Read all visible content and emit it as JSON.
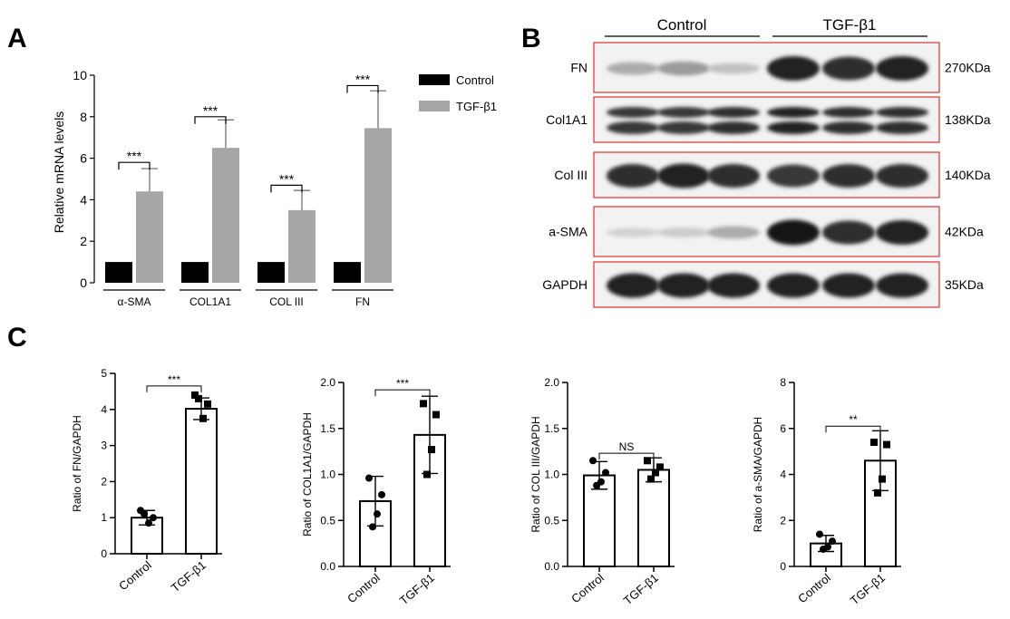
{
  "panels": {
    "a": "A",
    "b": "B",
    "c": "C"
  },
  "chart_data": [
    {
      "id": "A",
      "type": "bar",
      "title": "",
      "xlabel": "",
      "ylabel": "Relative mRNA levels",
      "ylim": [
        0,
        10
      ],
      "yticks": [
        0,
        2,
        4,
        6,
        8,
        10
      ],
      "categories": [
        "α-SMA",
        "COL1A1",
        "COL III",
        "FN"
      ],
      "series": [
        {
          "name": "Control",
          "color": "#000000",
          "values": [
            1,
            1,
            1,
            1
          ],
          "errors": [
            0,
            0,
            0,
            0
          ]
        },
        {
          "name": "TGF-β1",
          "color": "#a6a6a6",
          "values": [
            4.4,
            6.5,
            3.5,
            7.45
          ],
          "errors": [
            1.1,
            1.35,
            0.95,
            1.8
          ]
        }
      ],
      "significance": [
        {
          "category": "α-SMA",
          "label": "***",
          "level": 5.8
        },
        {
          "category": "COL1A1",
          "label": "***",
          "level": 8.0
        },
        {
          "category": "COL III",
          "label": "***",
          "level": 4.7
        },
        {
          "category": "FN",
          "label": "***",
          "level": 9.5
        }
      ],
      "legend": {
        "position": "top-right",
        "entries": [
          "Control",
          "TGF-β1"
        ]
      }
    },
    {
      "id": "C1",
      "type": "bar",
      "ylabel": "Ratio of FN/GAPDH",
      "ylim": [
        0,
        5
      ],
      "yticks": [
        0,
        1,
        2,
        3,
        4,
        5
      ],
      "yticklabels": [
        "0",
        "1",
        "2",
        "3",
        "4",
        "5"
      ],
      "categories": [
        "Control",
        "TGF-β1"
      ],
      "values": [
        1.0,
        4.02
      ],
      "errors": [
        0.2,
        0.3
      ],
      "points": [
        [
          1.2,
          1.0,
          0.85,
          1.1
        ],
        [
          4.4,
          4.15,
          3.75,
          4.3
        ]
      ],
      "markers": [
        "circle",
        "square"
      ],
      "significance": {
        "label": "***",
        "level": 4.65
      }
    },
    {
      "id": "C2",
      "type": "bar",
      "ylabel": "Ratio of COL1A1/GAPDH",
      "ylim": [
        0,
        2
      ],
      "yticks": [
        0,
        0.5,
        1,
        1.5,
        2
      ],
      "yticklabels": [
        "0.0",
        "0.5",
        "1.0",
        "1.5",
        "2.0"
      ],
      "categories": [
        "Control",
        "TGF-β1"
      ],
      "values": [
        0.71,
        1.43
      ],
      "errors": [
        0.27,
        0.42
      ],
      "points": [
        [
          0.96,
          0.78,
          0.57,
          0.43
        ],
        [
          1.77,
          1.65,
          1.27,
          1.0
        ]
      ],
      "markers": [
        "circle",
        "square"
      ],
      "significance": {
        "label": "***",
        "level": 1.92
      }
    },
    {
      "id": "C3",
      "type": "bar",
      "ylabel": "Ratio of COL III/GAPDH",
      "ylim": [
        0,
        2
      ],
      "yticks": [
        0,
        0.5,
        1,
        1.5,
        2
      ],
      "yticklabels": [
        "0.0",
        "0.5",
        "1.0",
        "1.5",
        "2.0"
      ],
      "categories": [
        "Control",
        "TGF-β1"
      ],
      "values": [
        0.99,
        1.05
      ],
      "errors": [
        0.15,
        0.13
      ],
      "points": [
        [
          1.15,
          1.02,
          0.92,
          0.88
        ],
        [
          1.15,
          1.08,
          1.02,
          0.95
        ]
      ],
      "markers": [
        "circle",
        "square"
      ],
      "significance": {
        "label": "NS",
        "level": 1.23
      }
    },
    {
      "id": "C4",
      "type": "bar",
      "ylabel": "Ratio of a-SMA/GAPDH",
      "ylim": [
        0,
        8
      ],
      "yticks": [
        0,
        2,
        4,
        6,
        8
      ],
      "yticklabels": [
        "0",
        "2",
        "4",
        "6",
        "8"
      ],
      "categories": [
        "Control",
        "TGF-β1"
      ],
      "values": [
        1.0,
        4.6
      ],
      "errors": [
        0.35,
        1.3
      ],
      "points": [
        [
          1.4,
          1.1,
          0.85,
          0.75
        ],
        [
          5.4,
          5.3,
          3.8,
          3.2
        ]
      ],
      "markers": [
        "circle",
        "square"
      ],
      "significance": {
        "label": "**",
        "level": 6.1
      }
    }
  ],
  "blot": {
    "group_labels": [
      "Control",
      "TGF-β1"
    ],
    "rows": [
      {
        "protein": "FN",
        "size": "270KDa",
        "intensities": [
          0.3,
          0.38,
          0.2,
          0.95,
          0.9,
          0.95
        ]
      },
      {
        "protein": "Col1A1",
        "size": "138KDa",
        "intensities": [
          0.85,
          0.85,
          0.9,
          0.95,
          0.9,
          0.9
        ]
      },
      {
        "protein": "Col III",
        "size": "140KDa",
        "intensities": [
          0.9,
          0.95,
          0.9,
          0.85,
          0.9,
          0.9
        ]
      },
      {
        "protein": "a-SMA",
        "size": "42KDa",
        "intensities": [
          0.12,
          0.15,
          0.3,
          1.0,
          0.9,
          0.95
        ]
      },
      {
        "protein": "GAPDH",
        "size": "35KDa",
        "intensities": [
          0.95,
          0.95,
          0.95,
          0.95,
          0.95,
          0.95
        ]
      }
    ]
  }
}
